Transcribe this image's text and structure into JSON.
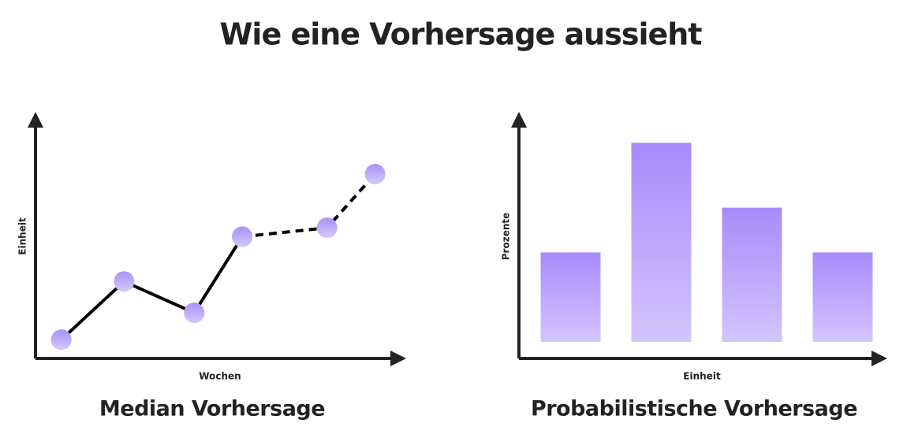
{
  "title": "Wie eine Vorhersage aussieht",
  "chart_data": [
    {
      "type": "line",
      "title": "Median Vorhersage",
      "x_label": "Wochen",
      "y_label": "Einheit",
      "x": [
        7,
        24,
        43,
        56,
        79,
        92
      ],
      "xlim": [
        0,
        100
      ],
      "ylim": [
        0,
        100
      ],
      "series": [
        {
          "color": "#000000",
          "dash": false,
          "values": [
            1,
            27,
            13,
            47,
            null,
            null
          ]
        },
        {
          "color": "#000000",
          "dash": true,
          "values": [
            null,
            null,
            null,
            47,
            51,
            75
          ]
        }
      ],
      "marker_color": "#a891f7"
    },
    {
      "type": "bar",
      "title": "Probabilistische Vorhersage",
      "x_label": "Einheit",
      "y_label": "Prozente",
      "categories": [
        null,
        null,
        null,
        null
      ],
      "values": [
        40,
        89,
        60,
        40
      ],
      "ylim": [
        0,
        100
      ],
      "color": "#a78bfa"
    }
  ]
}
